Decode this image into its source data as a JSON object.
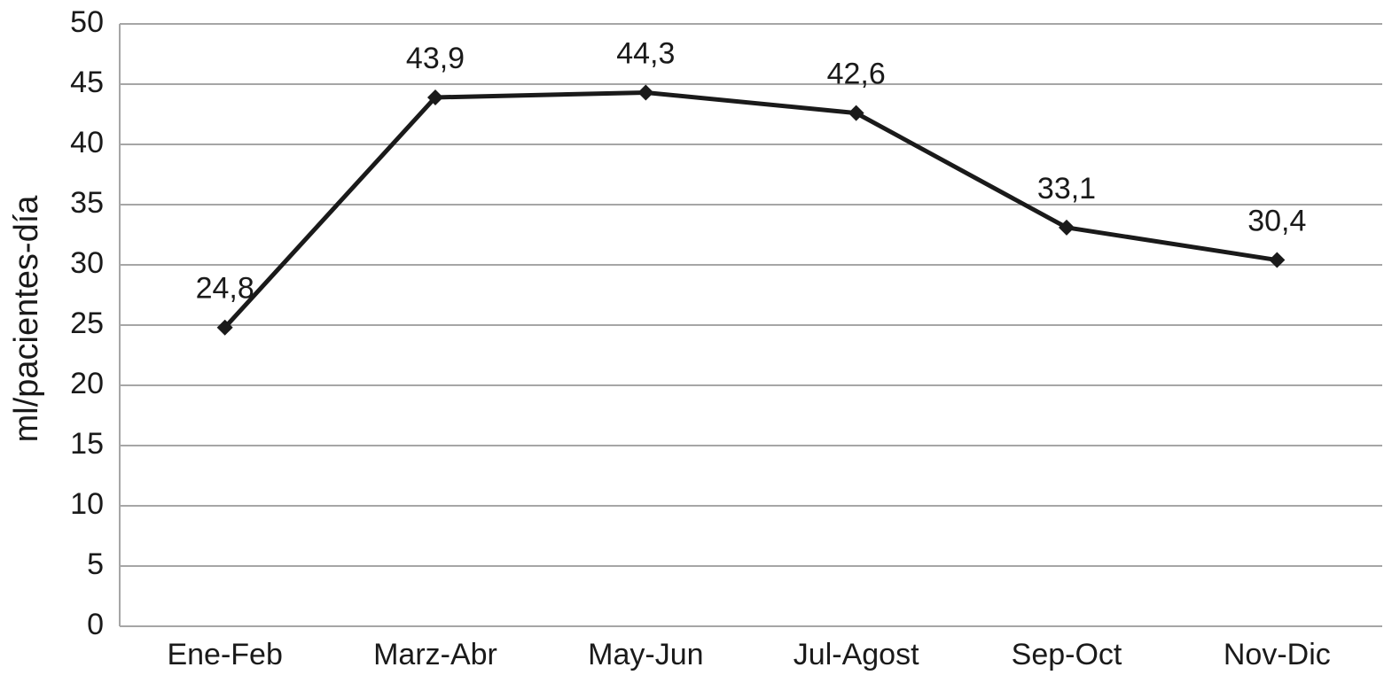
{
  "chart_data": {
    "type": "line",
    "y_label": "ml/pacientes-día",
    "categories": [
      "Ene-Feb",
      "Marz-Abr",
      "May-Jun",
      "Jul-Agost",
      "Sep-Oct",
      "Nov-Dic"
    ],
    "series": [
      {
        "color": "#1a1a1a",
        "values": [
          24.8,
          43.9,
          44.3,
          42.6,
          33.1,
          30.4
        ],
        "value_labels": [
          "24,8",
          "43,9",
          "44,3",
          "42,6",
          "33,1",
          "30,4"
        ]
      }
    ],
    "ylim": [
      0,
      50
    ],
    "yticks": [
      0,
      5,
      10,
      15,
      20,
      25,
      30,
      35,
      40,
      45,
      50
    ],
    "grid": true
  }
}
